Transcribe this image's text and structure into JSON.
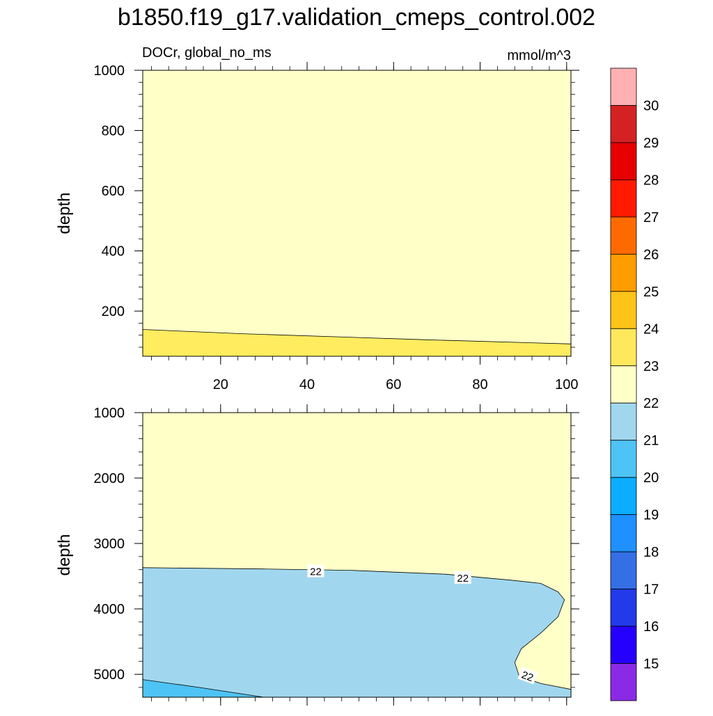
{
  "title": "b1850.f19_g17.validation_cmeps_control.002",
  "chart_data": {
    "type": "contour",
    "variable_label": "DOCr, global_no_ms",
    "units_label": "mmol/m^3",
    "colorbar": {
      "levels": [
        15,
        16,
        17,
        18,
        19,
        20,
        21,
        22,
        23,
        24,
        25,
        26,
        27,
        28,
        29,
        30
      ],
      "colors": [
        "#8a2ae6",
        "#2600ff",
        "#233aea",
        "#356fe6",
        "#1e90ff",
        "#0aadff",
        "#4ec3f5",
        "#a0d7ef",
        "#ffffc8",
        "#ffe85c",
        "#ffc419",
        "#ff9c00",
        "#ff6a00",
        "#ff1a00",
        "#e60000",
        "#d42222",
        "#ffb1b1"
      ]
    },
    "panels": [
      {
        "name": "upper",
        "ylabel": "depth",
        "xlabel": "",
        "xlim": [
          2,
          101
        ],
        "ylim": [
          1000,
          50
        ],
        "xticks": [
          20,
          40,
          60,
          80,
          100
        ],
        "yticks": [
          200,
          400,
          600,
          800,
          1000
        ],
        "xticklabels_visible": true,
        "regions": [
          {
            "band": "22-23",
            "color": "#ffffc8",
            "points": [
              [
                2,
                50
              ],
              [
                101,
                50
              ],
              [
                101,
                1000
              ],
              [
                2,
                1000
              ]
            ]
          },
          {
            "band": "23-24",
            "color": "#ffec5f",
            "points": [
              [
                2,
                50
              ],
              [
                101,
                50
              ],
              [
                101,
                91
              ],
              [
                67,
                105
              ],
              [
                25,
                125
              ],
              [
                2,
                139
              ]
            ]
          }
        ],
        "contour_lines": [
          {
            "level": 23,
            "points": [
              [
                2,
                139
              ],
              [
                25,
                125
              ],
              [
                67,
                105
              ],
              [
                101,
                91
              ]
            ]
          }
        ],
        "contour_labels": []
      },
      {
        "name": "lower",
        "ylabel": "depth",
        "xlabel": "",
        "xlim": [
          2,
          101
        ],
        "ylim": [
          1000,
          5350
        ],
        "xticks": [
          20,
          40,
          60,
          80,
          100
        ],
        "yticks": [
          1000,
          2000,
          3000,
          4000,
          5000
        ],
        "xticklabels_visible": false,
        "regions": [
          {
            "band": "22-23",
            "color": "#ffffc8",
            "points": [
              [
                2,
                1000
              ],
              [
                101,
                1000
              ],
              [
                101,
                5350
              ],
              [
                2,
                5350
              ]
            ]
          },
          {
            "band": "21-22",
            "color": "#a0d7ef",
            "points": [
              [
                2,
                3370
              ],
              [
                30,
                3390
              ],
              [
                50,
                3410
              ],
              [
                72,
                3470
              ],
              [
                87,
                3560
              ],
              [
                94,
                3610
              ],
              [
                98,
                3740
              ],
              [
                99.5,
                3860
              ],
              [
                98,
                4120
              ],
              [
                94,
                4370
              ],
              [
                89.5,
                4610
              ],
              [
                88,
                4820
              ],
              [
                89,
                5020
              ],
              [
                94,
                5140
              ],
              [
                101,
                5230
              ],
              [
                101,
                5350
              ],
              [
                2,
                5350
              ]
            ]
          },
          {
            "band": "20-21",
            "color": "#4ec3f5",
            "points": [
              [
                2,
                5080
              ],
              [
                15,
                5200
              ],
              [
                30,
                5350
              ],
              [
                2,
                5350
              ]
            ]
          }
        ],
        "contour_lines": [
          {
            "level": 22,
            "points": [
              [
                2,
                3370
              ],
              [
                30,
                3390
              ],
              [
                50,
                3410
              ],
              [
                72,
                3470
              ],
              [
                87,
                3560
              ],
              [
                94,
                3610
              ],
              [
                98,
                3740
              ],
              [
                99.5,
                3860
              ],
              [
                98,
                4120
              ],
              [
                94,
                4370
              ],
              [
                89.5,
                4610
              ],
              [
                88,
                4820
              ],
              [
                89,
                5020
              ],
              [
                94,
                5140
              ],
              [
                101,
                5230
              ]
            ]
          },
          {
            "level": 21,
            "points": [
              [
                2,
                5080
              ],
              [
                15,
                5200
              ],
              [
                30,
                5350
              ]
            ]
          }
        ],
        "contour_labels": [
          {
            "text": "22",
            "x": 42,
            "y": 3420,
            "angle": 0
          },
          {
            "text": "22",
            "x": 76,
            "y": 3520,
            "angle": 0
          },
          {
            "text": "22",
            "x": 91,
            "y": 5020,
            "angle": 20
          }
        ]
      }
    ]
  }
}
